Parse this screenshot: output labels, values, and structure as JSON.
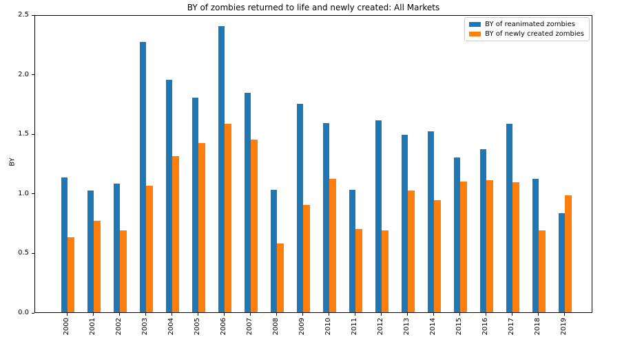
{
  "chart_data": {
    "type": "bar",
    "title": "BY of zombies returned to life and newly created: All Markets",
    "ylabel": "BY",
    "xlabel": "",
    "categories": [
      "2000",
      "2001",
      "2002",
      "2003",
      "2004",
      "2005",
      "2006",
      "2007",
      "2008",
      "2009",
      "2010",
      "2011",
      "2012",
      "2013",
      "2014",
      "2015",
      "2016",
      "2017",
      "2018",
      "2019"
    ],
    "series": [
      {
        "name": "BY of reanimated zombies",
        "color": "#1f77b4",
        "values": [
          1.13,
          1.02,
          1.08,
          2.27,
          1.95,
          1.8,
          2.4,
          1.84,
          1.03,
          1.75,
          1.59,
          1.03,
          1.61,
          1.49,
          1.52,
          1.3,
          1.37,
          1.58,
          1.12,
          0.83
        ]
      },
      {
        "name": "BY of newly created zombies",
        "color": "#ff7f0e",
        "values": [
          0.63,
          0.77,
          0.69,
          1.06,
          1.31,
          1.42,
          1.58,
          1.45,
          0.58,
          0.9,
          1.12,
          0.7,
          0.69,
          1.02,
          0.94,
          1.1,
          1.11,
          1.09,
          0.69,
          0.98
        ]
      }
    ],
    "ylim": [
      0.0,
      2.5
    ],
    "yticks": [
      "0.0",
      "0.5",
      "1.0",
      "1.5",
      "2.0",
      "2.5"
    ],
    "grid": false,
    "legend_position": "upper right",
    "spine_color": "#000000"
  }
}
